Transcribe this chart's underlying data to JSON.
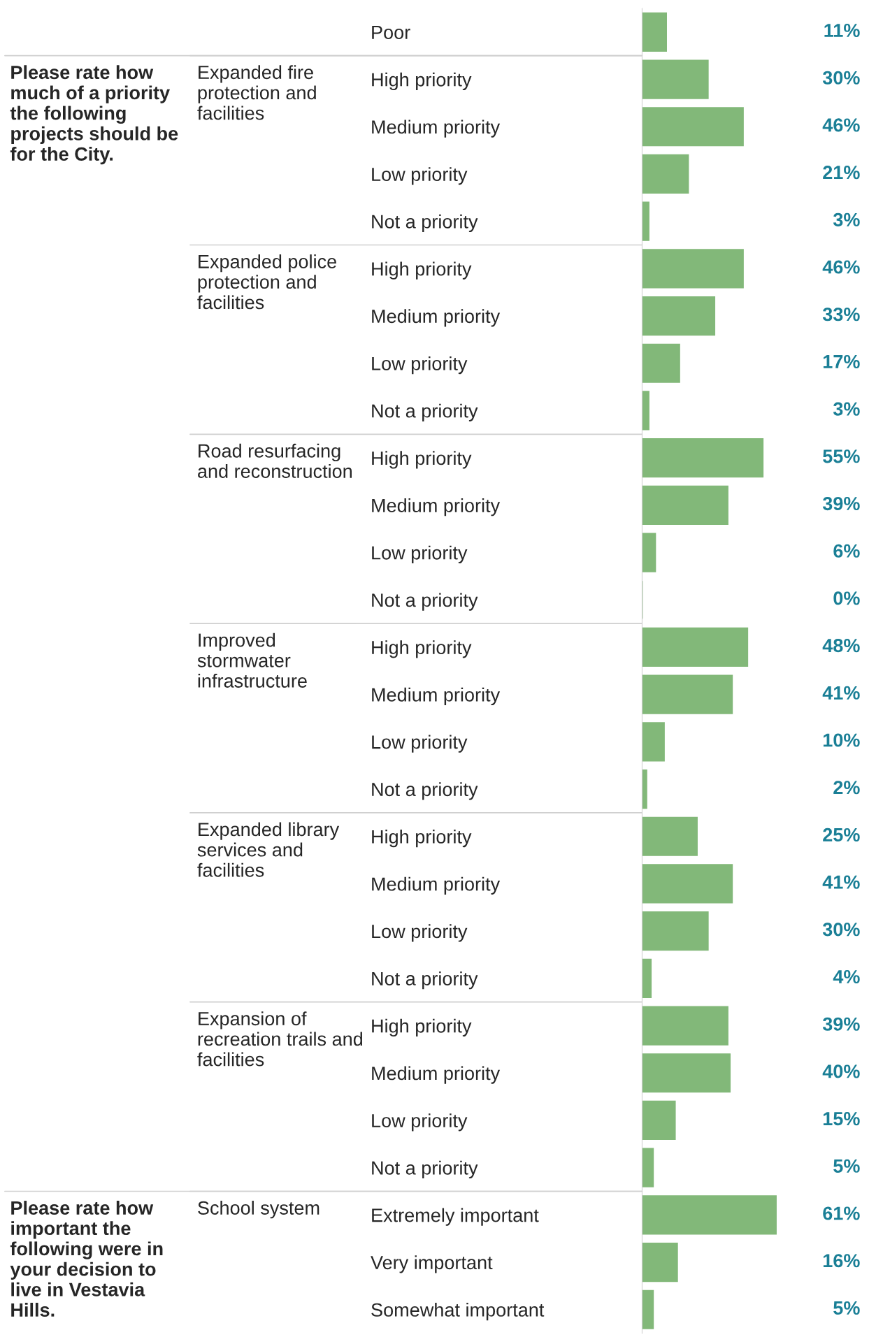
{
  "chart_data": {
    "type": "bar",
    "orientation": "horizontal",
    "categories": [
      "Poor",
      "High priority",
      "Medium priority",
      "Low priority",
      "Not a priority",
      "High priority",
      "Medium priority",
      "Low priority",
      "Not a priority",
      "High priority",
      "Medium priority",
      "Low priority",
      "Not a priority",
      "High priority",
      "Medium priority",
      "Low priority",
      "Not a priority",
      "High priority",
      "Medium priority",
      "Low priority",
      "Not a priority",
      "High priority",
      "Medium priority",
      "Low priority",
      "Not a priority",
      "Extremely important",
      "Very important",
      "Somewhat important"
    ],
    "values": [
      11,
      30,
      46,
      21,
      3,
      46,
      33,
      17,
      3,
      55,
      39,
      6,
      0,
      48,
      41,
      10,
      2,
      25,
      41,
      30,
      4,
      39,
      40,
      15,
      5,
      61,
      16,
      5
    ],
    "value_labels": [
      "11%",
      "30%",
      "46%",
      "21%",
      "3%",
      "46%",
      "33%",
      "17%",
      "3%",
      "55%",
      "39%",
      "6%",
      "0%",
      "48%",
      "41%",
      "10%",
      "2%",
      "25%",
      "41%",
      "30%",
      "4%",
      "39%",
      "40%",
      "15%",
      "5%",
      "61%",
      "16%",
      "5%"
    ],
    "color": "#82b879",
    "tick_labels": "y",
    "annotations": [
      "Please rate how\nmuch of a priority\nthe following\nprojects should be\nfor the City.",
      "Expanded fire\nprotection and\nfacilities",
      "Expanded police\nprotection and\nfacilities",
      "Road resurfacing\nand reconstruction",
      "Improved\nstormwater\ninfrastructure",
      "Expanded library\nservices and\nfacilities",
      "Expansion of\nrecreation trails and\nfacilities",
      "Please rate how\nimportant the\nfollowing were in\nyour decision to\nlive in Vestavia\nHills.",
      "School system"
    ]
  }
}
